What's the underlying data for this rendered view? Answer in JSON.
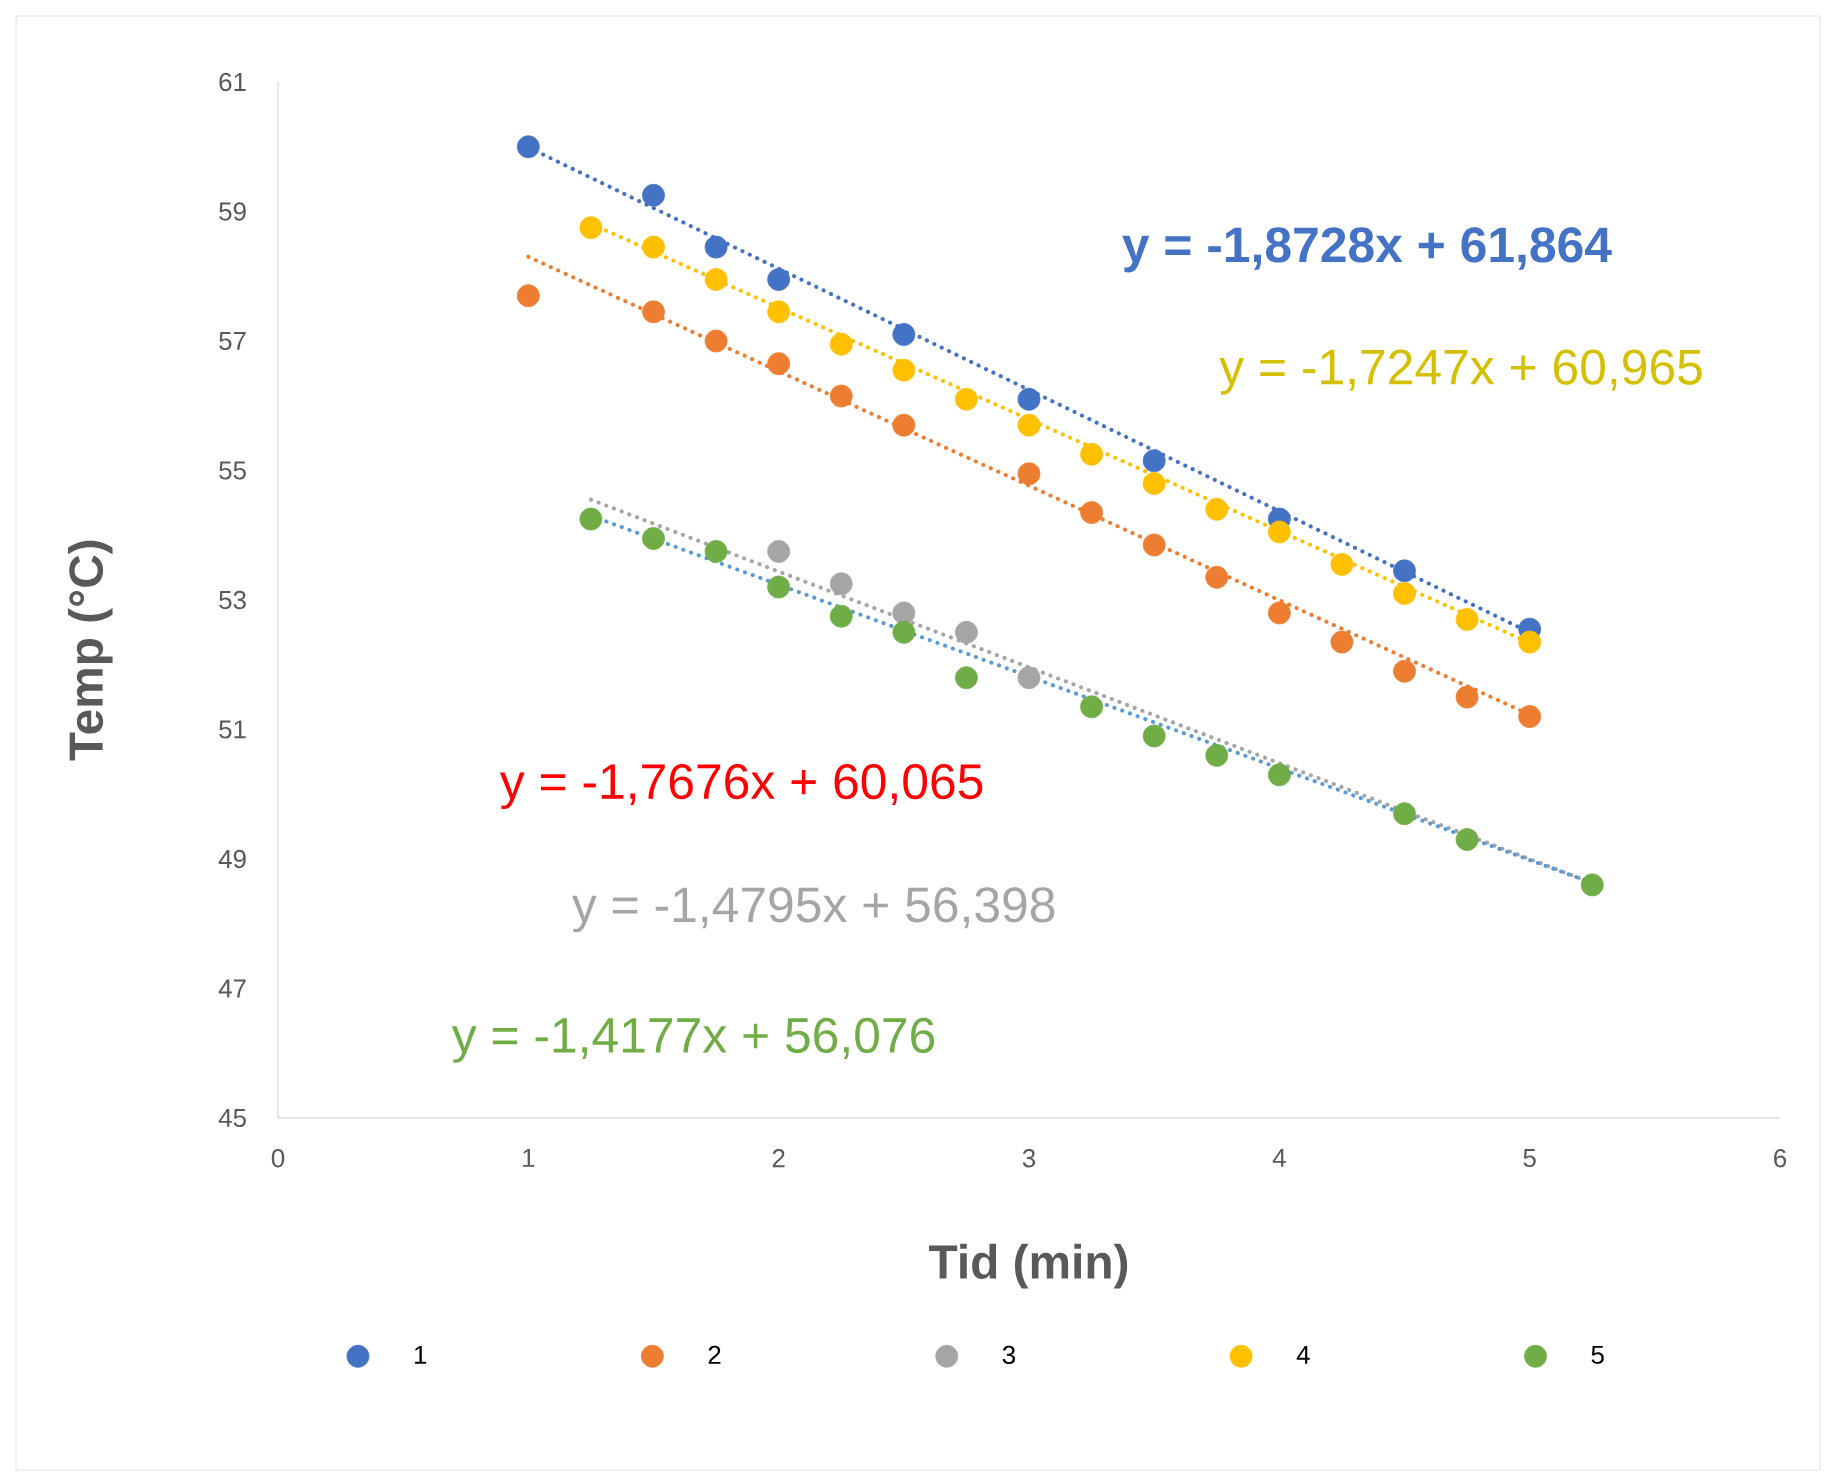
{
  "chart_data": {
    "type": "scatter",
    "xlabel": "Tid (min)",
    "ylabel": "Temp (°C)",
    "xlim": [
      0,
      6
    ],
    "ylim": [
      45,
      61
    ],
    "xticks": [
      0,
      1,
      2,
      3,
      4,
      5,
      6
    ],
    "yticks": [
      45,
      47,
      49,
      51,
      53,
      55,
      57,
      59,
      61
    ],
    "legend": "bottom",
    "series": [
      {
        "name": "1",
        "marker": "circle",
        "color": "#4472c4",
        "x": [
          1,
          1.5,
          1.75,
          2,
          2.5,
          3,
          3.5,
          4,
          4.5,
          5
        ],
        "values": [
          60.0,
          59.25,
          58.45,
          57.95,
          57.1,
          56.1,
          55.15,
          54.25,
          53.45,
          52.55
        ]
      },
      {
        "name": "2",
        "marker": "circle",
        "color": "#ed7d31",
        "x": [
          1,
          1.5,
          1.75,
          2,
          2.25,
          2.5,
          3,
          3.25,
          3.5,
          3.75,
          4,
          4.25,
          4.5,
          4.75,
          5
        ],
        "values": [
          57.7,
          57.45,
          57.0,
          56.65,
          56.15,
          55.7,
          54.95,
          54.35,
          53.85,
          53.35,
          52.8,
          52.35,
          51.9,
          51.5,
          51.2
        ]
      },
      {
        "name": "3",
        "marker": "circle",
        "color": "#a5a5a5",
        "x": [
          2,
          2.25,
          2.5,
          2.75,
          3
        ],
        "values": [
          53.75,
          53.25,
          52.8,
          52.5,
          51.8
        ]
      },
      {
        "name": "4",
        "marker": "circle",
        "color": "#ffc000",
        "x": [
          1.25,
          1.5,
          1.75,
          2,
          2.25,
          2.5,
          2.75,
          3,
          3.25,
          3.5,
          3.75,
          4,
          4.25,
          4.5,
          4.75,
          5
        ],
        "values": [
          58.75,
          58.45,
          57.95,
          57.45,
          56.95,
          56.55,
          56.1,
          55.7,
          55.25,
          54.8,
          54.4,
          54.05,
          53.55,
          53.1,
          52.7,
          52.35
        ]
      },
      {
        "name": "5",
        "marker": "circle",
        "color": "#70ad47",
        "x": [
          1.25,
          1.5,
          1.75,
          2,
          2.25,
          2.5,
          2.75,
          3.25,
          3.5,
          3.75,
          4,
          4.5,
          4.75,
          5.25
        ],
        "values": [
          54.25,
          53.95,
          53.75,
          53.2,
          52.75,
          52.5,
          51.8,
          51.35,
          50.9,
          50.6,
          50.3,
          49.7,
          49.3,
          48.6
        ]
      },
      {
        "type": "line",
        "marker": "none",
        "line_style": "dotted",
        "color": "#4472c4",
        "x": [
          1,
          5
        ],
        "values": [
          59.99,
          52.5
        ]
      },
      {
        "type": "line",
        "marker": "none",
        "line_style": "dotted",
        "color": "#ed7d31",
        "x": [
          1,
          5
        ],
        "values": [
          58.3,
          51.23
        ]
      },
      {
        "type": "line",
        "marker": "none",
        "line_style": "dotted",
        "color": "#a5a5a5",
        "x": [
          1.25,
          5.25
        ],
        "values": [
          54.55,
          48.63
        ]
      },
      {
        "type": "line",
        "marker": "none",
        "line_style": "dotted",
        "color": "#ffc000",
        "x": [
          1.25,
          5
        ],
        "values": [
          58.81,
          52.34
        ]
      },
      {
        "type": "line",
        "marker": "none",
        "line_style": "dotted",
        "color": "#5b9bd5",
        "x": [
          1.25,
          5.25
        ],
        "values": [
          54.3,
          48.63
        ]
      }
    ],
    "annotations": [
      "y = -1,8728x + 61,864",
      "y = -1,7247x + 60,965",
      "y = -1,7676x + 60,065",
      "y = -1,4795x + 56,398",
      "y = -1,4177x + 56,076"
    ]
  }
}
